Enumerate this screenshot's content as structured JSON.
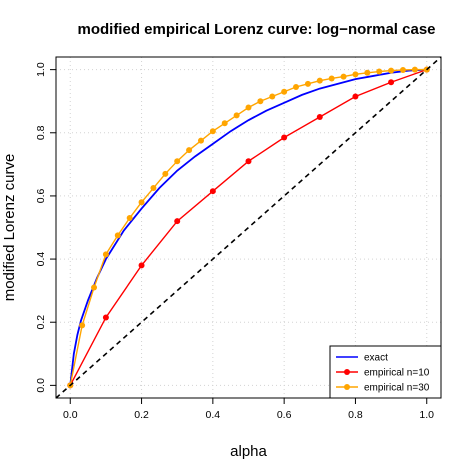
{
  "chart_data": {
    "type": "line",
    "title": "modified empirical Lorenz curve: log−normal case",
    "xlabel": "alpha",
    "ylabel": "modified Lorenz curve",
    "xlim": [
      -0.04,
      1.04
    ],
    "ylim": [
      -0.04,
      1.04
    ],
    "xticks": [
      "0.0",
      "0.2",
      "0.4",
      "0.6",
      "0.8",
      "1.0"
    ],
    "yticks": [
      "0.0",
      "0.2",
      "0.4",
      "0.6",
      "0.8",
      "1.0"
    ],
    "grid": true,
    "legend_position": "bottom-right",
    "series": [
      {
        "name": "exact",
        "color": "#0000ff",
        "style": "solid",
        "x": [
          0,
          0.01,
          0.02,
          0.03,
          0.05,
          0.075,
          0.1,
          0.15,
          0.2,
          0.25,
          0.3,
          0.35,
          0.4,
          0.45,
          0.5,
          0.55,
          0.6,
          0.65,
          0.7,
          0.75,
          0.8,
          0.85,
          0.9,
          0.95,
          1.0
        ],
        "y": [
          0,
          0.1,
          0.16,
          0.205,
          0.27,
          0.34,
          0.4,
          0.49,
          0.56,
          0.625,
          0.68,
          0.725,
          0.765,
          0.805,
          0.84,
          0.87,
          0.895,
          0.92,
          0.94,
          0.955,
          0.97,
          0.98,
          0.99,
          0.997,
          1.0
        ]
      },
      {
        "name": "empirical n=10",
        "color": "#ff0000",
        "style": "solid-points",
        "x": [
          0,
          0.1,
          0.2,
          0.3,
          0.4,
          0.5,
          0.6,
          0.7,
          0.8,
          0.9,
          1.0
        ],
        "y": [
          0,
          0.215,
          0.38,
          0.52,
          0.615,
          0.71,
          0.785,
          0.85,
          0.915,
          0.96,
          1.0
        ]
      },
      {
        "name": "empirical n=30",
        "color": "#ffa500",
        "style": "solid-points",
        "x": [
          0,
          0.0333,
          0.0667,
          0.1,
          0.1333,
          0.1667,
          0.2,
          0.2333,
          0.2667,
          0.3,
          0.3333,
          0.3667,
          0.4,
          0.4333,
          0.4667,
          0.5,
          0.5333,
          0.5667,
          0.6,
          0.6333,
          0.6667,
          0.7,
          0.7333,
          0.7667,
          0.8,
          0.8333,
          0.8667,
          0.9,
          0.9333,
          0.9667,
          1.0
        ],
        "y": [
          0,
          0.19,
          0.31,
          0.415,
          0.475,
          0.53,
          0.58,
          0.625,
          0.67,
          0.71,
          0.745,
          0.775,
          0.805,
          0.83,
          0.855,
          0.88,
          0.9,
          0.915,
          0.93,
          0.945,
          0.955,
          0.965,
          0.972,
          0.978,
          0.985,
          0.99,
          0.994,
          0.997,
          0.999,
          1.0,
          1.0
        ]
      },
      {
        "color": "#000000",
        "style": "dashed",
        "x": [
          -0.04,
          1.04
        ],
        "y": [
          -0.04,
          1.04
        ]
      }
    ]
  }
}
